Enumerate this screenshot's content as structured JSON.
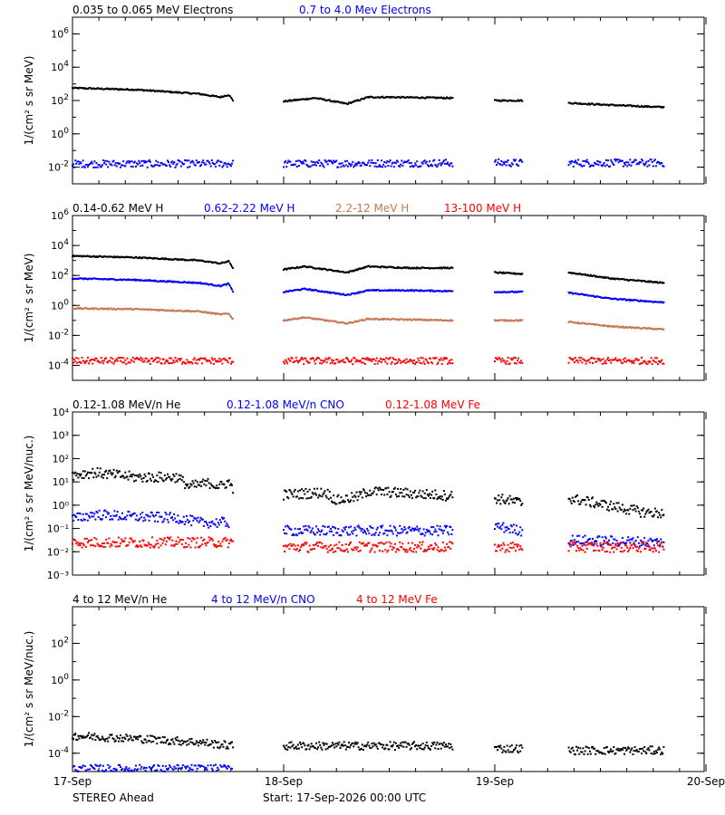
{
  "chart_data": [
    {
      "type": "scatter",
      "ylabel": "1/(cm² s sr MeV)",
      "yscale": "log",
      "ylim_exp": [
        -3,
        7
      ],
      "tick_exponents": [
        -2,
        0,
        2,
        4,
        6
      ],
      "series": [
        {
          "name": "0.035 to 0.065 MeV Electrons",
          "color": "#000000",
          "segments": [
            {
              "x": [
                0.0,
                0.3,
                0.6,
                0.7,
                0.74,
                0.76
              ],
              "y_exp": [
                2.75,
                2.65,
                2.4,
                2.2,
                2.35,
                2.0
              ]
            },
            {
              "x": [
                1.0,
                1.15,
                1.3,
                1.4,
                1.5,
                1.8
              ],
              "y_exp": [
                1.95,
                2.15,
                1.8,
                2.2,
                2.2,
                2.15
              ]
            },
            {
              "x": [
                2.0,
                2.13
              ],
              "y_exp": [
                2.0,
                2.0
              ]
            },
            {
              "x": [
                2.35,
                2.6,
                2.8
              ],
              "y_exp": [
                1.85,
                1.7,
                1.6
              ]
            }
          ]
        },
        {
          "name": "0.7 to 4.0 Mev Electrons",
          "color": "#0000ff",
          "segments": [
            {
              "x": [
                0.0,
                0.76
              ],
              "y_exp": [
                -1.8,
                -1.8
              ]
            },
            {
              "x": [
                1.0,
                1.8
              ],
              "y_exp": [
                -1.8,
                -1.75
              ]
            },
            {
              "x": [
                2.0,
                2.13
              ],
              "y_exp": [
                -1.75,
                -1.75
              ]
            },
            {
              "x": [
                2.35,
                2.8
              ],
              "y_exp": [
                -1.75,
                -1.75
              ]
            }
          ]
        }
      ]
    },
    {
      "type": "scatter",
      "ylabel": "1/(cm² s sr MeV)",
      "yscale": "log",
      "ylim_exp": [
        -5,
        6
      ],
      "tick_exponents": [
        -4,
        -2,
        0,
        2,
        4,
        6
      ],
      "series": [
        {
          "name": "0.14-0.62 MeV H",
          "color": "#000000",
          "segments": [
            {
              "x": [
                0.0,
                0.3,
                0.6,
                0.7,
                0.74,
                0.76
              ],
              "y_exp": [
                3.3,
                3.2,
                3.0,
                2.8,
                2.95,
                2.5
              ]
            },
            {
              "x": [
                1.0,
                1.1,
                1.3,
                1.4,
                1.6,
                1.8
              ],
              "y_exp": [
                2.4,
                2.6,
                2.2,
                2.6,
                2.5,
                2.5
              ]
            },
            {
              "x": [
                2.0,
                2.13
              ],
              "y_exp": [
                2.2,
                2.1
              ]
            },
            {
              "x": [
                2.35,
                2.55,
                2.8
              ],
              "y_exp": [
                2.2,
                1.8,
                1.5
              ]
            }
          ]
        },
        {
          "name": "0.62-2.22 MeV H",
          "color": "#0000ff",
          "segments": [
            {
              "x": [
                0.0,
                0.3,
                0.6,
                0.7,
                0.74,
                0.76
              ],
              "y_exp": [
                1.8,
                1.7,
                1.5,
                1.3,
                1.45,
                0.9
              ]
            },
            {
              "x": [
                1.0,
                1.1,
                1.3,
                1.4,
                1.6,
                1.8
              ],
              "y_exp": [
                0.9,
                1.1,
                0.7,
                1.0,
                1.0,
                0.95
              ]
            },
            {
              "x": [
                2.0,
                2.13
              ],
              "y_exp": [
                0.9,
                0.9
              ]
            },
            {
              "x": [
                2.35,
                2.55,
                2.8
              ],
              "y_exp": [
                0.85,
                0.45,
                0.2
              ]
            }
          ]
        },
        {
          "name": "2.2-12 MeV H",
          "color": "#c87855",
          "segments": [
            {
              "x": [
                0.0,
                0.3,
                0.6,
                0.7,
                0.74,
                0.76
              ],
              "y_exp": [
                -0.2,
                -0.25,
                -0.4,
                -0.6,
                -0.55,
                -0.9
              ]
            },
            {
              "x": [
                1.0,
                1.1,
                1.3,
                1.4,
                1.6,
                1.8
              ],
              "y_exp": [
                -1.0,
                -0.8,
                -1.2,
                -0.9,
                -0.95,
                -1.0
              ]
            },
            {
              "x": [
                2.0,
                2.13
              ],
              "y_exp": [
                -1.0,
                -1.0
              ]
            },
            {
              "x": [
                2.35,
                2.55,
                2.8
              ],
              "y_exp": [
                -1.1,
                -1.4,
                -1.6
              ]
            }
          ]
        },
        {
          "name": "13-100 MeV H",
          "color": "#ff0000",
          "segments": [
            {
              "x": [
                0.0,
                0.76
              ],
              "y_exp": [
                -3.7,
                -3.7
              ]
            },
            {
              "x": [
                1.0,
                1.8
              ],
              "y_exp": [
                -3.7,
                -3.7
              ]
            },
            {
              "x": [
                2.0,
                2.13
              ],
              "y_exp": [
                -3.7,
                -3.7
              ]
            },
            {
              "x": [
                2.35,
                2.8
              ],
              "y_exp": [
                -3.7,
                -3.7
              ]
            }
          ]
        }
      ]
    },
    {
      "type": "scatter",
      "ylabel": "1/(cm² s sr MeV/nuc.)",
      "yscale": "log",
      "ylim_exp": [
        -3,
        4
      ],
      "tick_exponents": [
        -3,
        -2,
        -1,
        0,
        1,
        2,
        3,
        4
      ],
      "tick_labels": [
        "10⁻³",
        "10⁻²",
        "10⁻¹",
        "10⁰",
        "10¹",
        "10²",
        "10³",
        "10⁴"
      ],
      "series": [
        {
          "name": "0.12-1.08 MeV/n He",
          "color": "#000000",
          "segments": [
            {
              "x": [
                0.0,
                0.1,
                0.3,
                0.5,
                0.55,
                0.65,
                0.7,
                0.74,
                0.76
              ],
              "y_exp": [
                1.3,
                1.4,
                1.2,
                1.2,
                0.8,
                0.95,
                0.8,
                1.0,
                0.7
              ]
            },
            {
              "x": [
                1.0,
                1.2,
                1.25,
                1.35,
                1.4,
                1.6,
                1.8
              ],
              "y_exp": [
                0.45,
                0.55,
                0.2,
                0.35,
                0.6,
                0.5,
                0.4
              ]
            },
            {
              "x": [
                2.0,
                2.13
              ],
              "y_exp": [
                0.3,
                0.1
              ]
            },
            {
              "x": [
                2.35,
                2.5,
                2.7,
                2.8
              ],
              "y_exp": [
                0.3,
                0.05,
                -0.3,
                -0.35
              ]
            }
          ]
        },
        {
          "name": "0.12-1.08 MeV/n CNO",
          "color": "#0000ff",
          "segments": [
            {
              "x": [
                0.0,
                0.1,
                0.3,
                0.5,
                0.6,
                0.74
              ],
              "y_exp": [
                -0.6,
                -0.4,
                -0.5,
                -0.55,
                -0.75,
                -0.75
              ]
            },
            {
              "x": [
                1.0,
                1.8
              ],
              "y_exp": [
                -1.1,
                -1.1
              ]
            },
            {
              "x": [
                2.0,
                2.13
              ],
              "y_exp": [
                -0.9,
                -1.1
              ]
            },
            {
              "x": [
                2.35,
                2.8
              ],
              "y_exp": [
                -1.5,
                -1.6
              ]
            }
          ]
        },
        {
          "name": "0.12-1.08 MeV Fe",
          "color": "#ff0000",
          "segments": [
            {
              "x": [
                0.0,
                0.76
              ],
              "y_exp": [
                -1.6,
                -1.6
              ]
            },
            {
              "x": [
                1.0,
                1.8
              ],
              "y_exp": [
                -1.8,
                -1.8
              ]
            },
            {
              "x": [
                2.0,
                2.13
              ],
              "y_exp": [
                -1.8,
                -1.8
              ]
            },
            {
              "x": [
                2.35,
                2.8
              ],
              "y_exp": [
                -1.8,
                -1.8
              ]
            }
          ]
        }
      ]
    },
    {
      "type": "scatter",
      "ylabel": "1/(cm² s sr MeV/nuc.)",
      "yscale": "log",
      "ylim_exp": [
        -5,
        4
      ],
      "tick_exponents": [
        -4,
        -2,
        0,
        2
      ],
      "series": [
        {
          "name": "4 to 12 MeV/n He",
          "color": "#000000",
          "segments": [
            {
              "x": [
                0.0,
                0.3,
                0.6,
                0.76
              ],
              "y_exp": [
                -3.05,
                -3.2,
                -3.4,
                -3.6
              ]
            },
            {
              "x": [
                1.0,
                1.8
              ],
              "y_exp": [
                -3.6,
                -3.6
              ]
            },
            {
              "x": [
                2.0,
                2.13
              ],
              "y_exp": [
                -3.75,
                -3.75
              ]
            },
            {
              "x": [
                2.35,
                2.8
              ],
              "y_exp": [
                -3.85,
                -3.85
              ]
            }
          ]
        },
        {
          "name": "4 to 12 MeV/n CNO",
          "color": "#0000ff",
          "segments": [
            {
              "x": [
                0.0,
                0.76
              ],
              "y_exp": [
                -4.85,
                -4.85
              ]
            }
          ]
        },
        {
          "name": "4 to 12 MeV Fe",
          "color": "#ff0000",
          "segments": []
        }
      ]
    }
  ],
  "x_axis": {
    "tick_labels": [
      "17-Sep",
      "18-Sep",
      "19-Sep",
      "20-Sep"
    ],
    "tick_days": [
      0,
      1,
      2,
      3
    ]
  },
  "footer": {
    "spacecraft": "STEREO Ahead",
    "start": "Start: 17-Sep-2026 00:00 UTC"
  },
  "colors": {
    "black_series": "#000000",
    "blue_series": "#0000ff",
    "tan_series": "#c87855",
    "red_series": "#ff0000"
  }
}
